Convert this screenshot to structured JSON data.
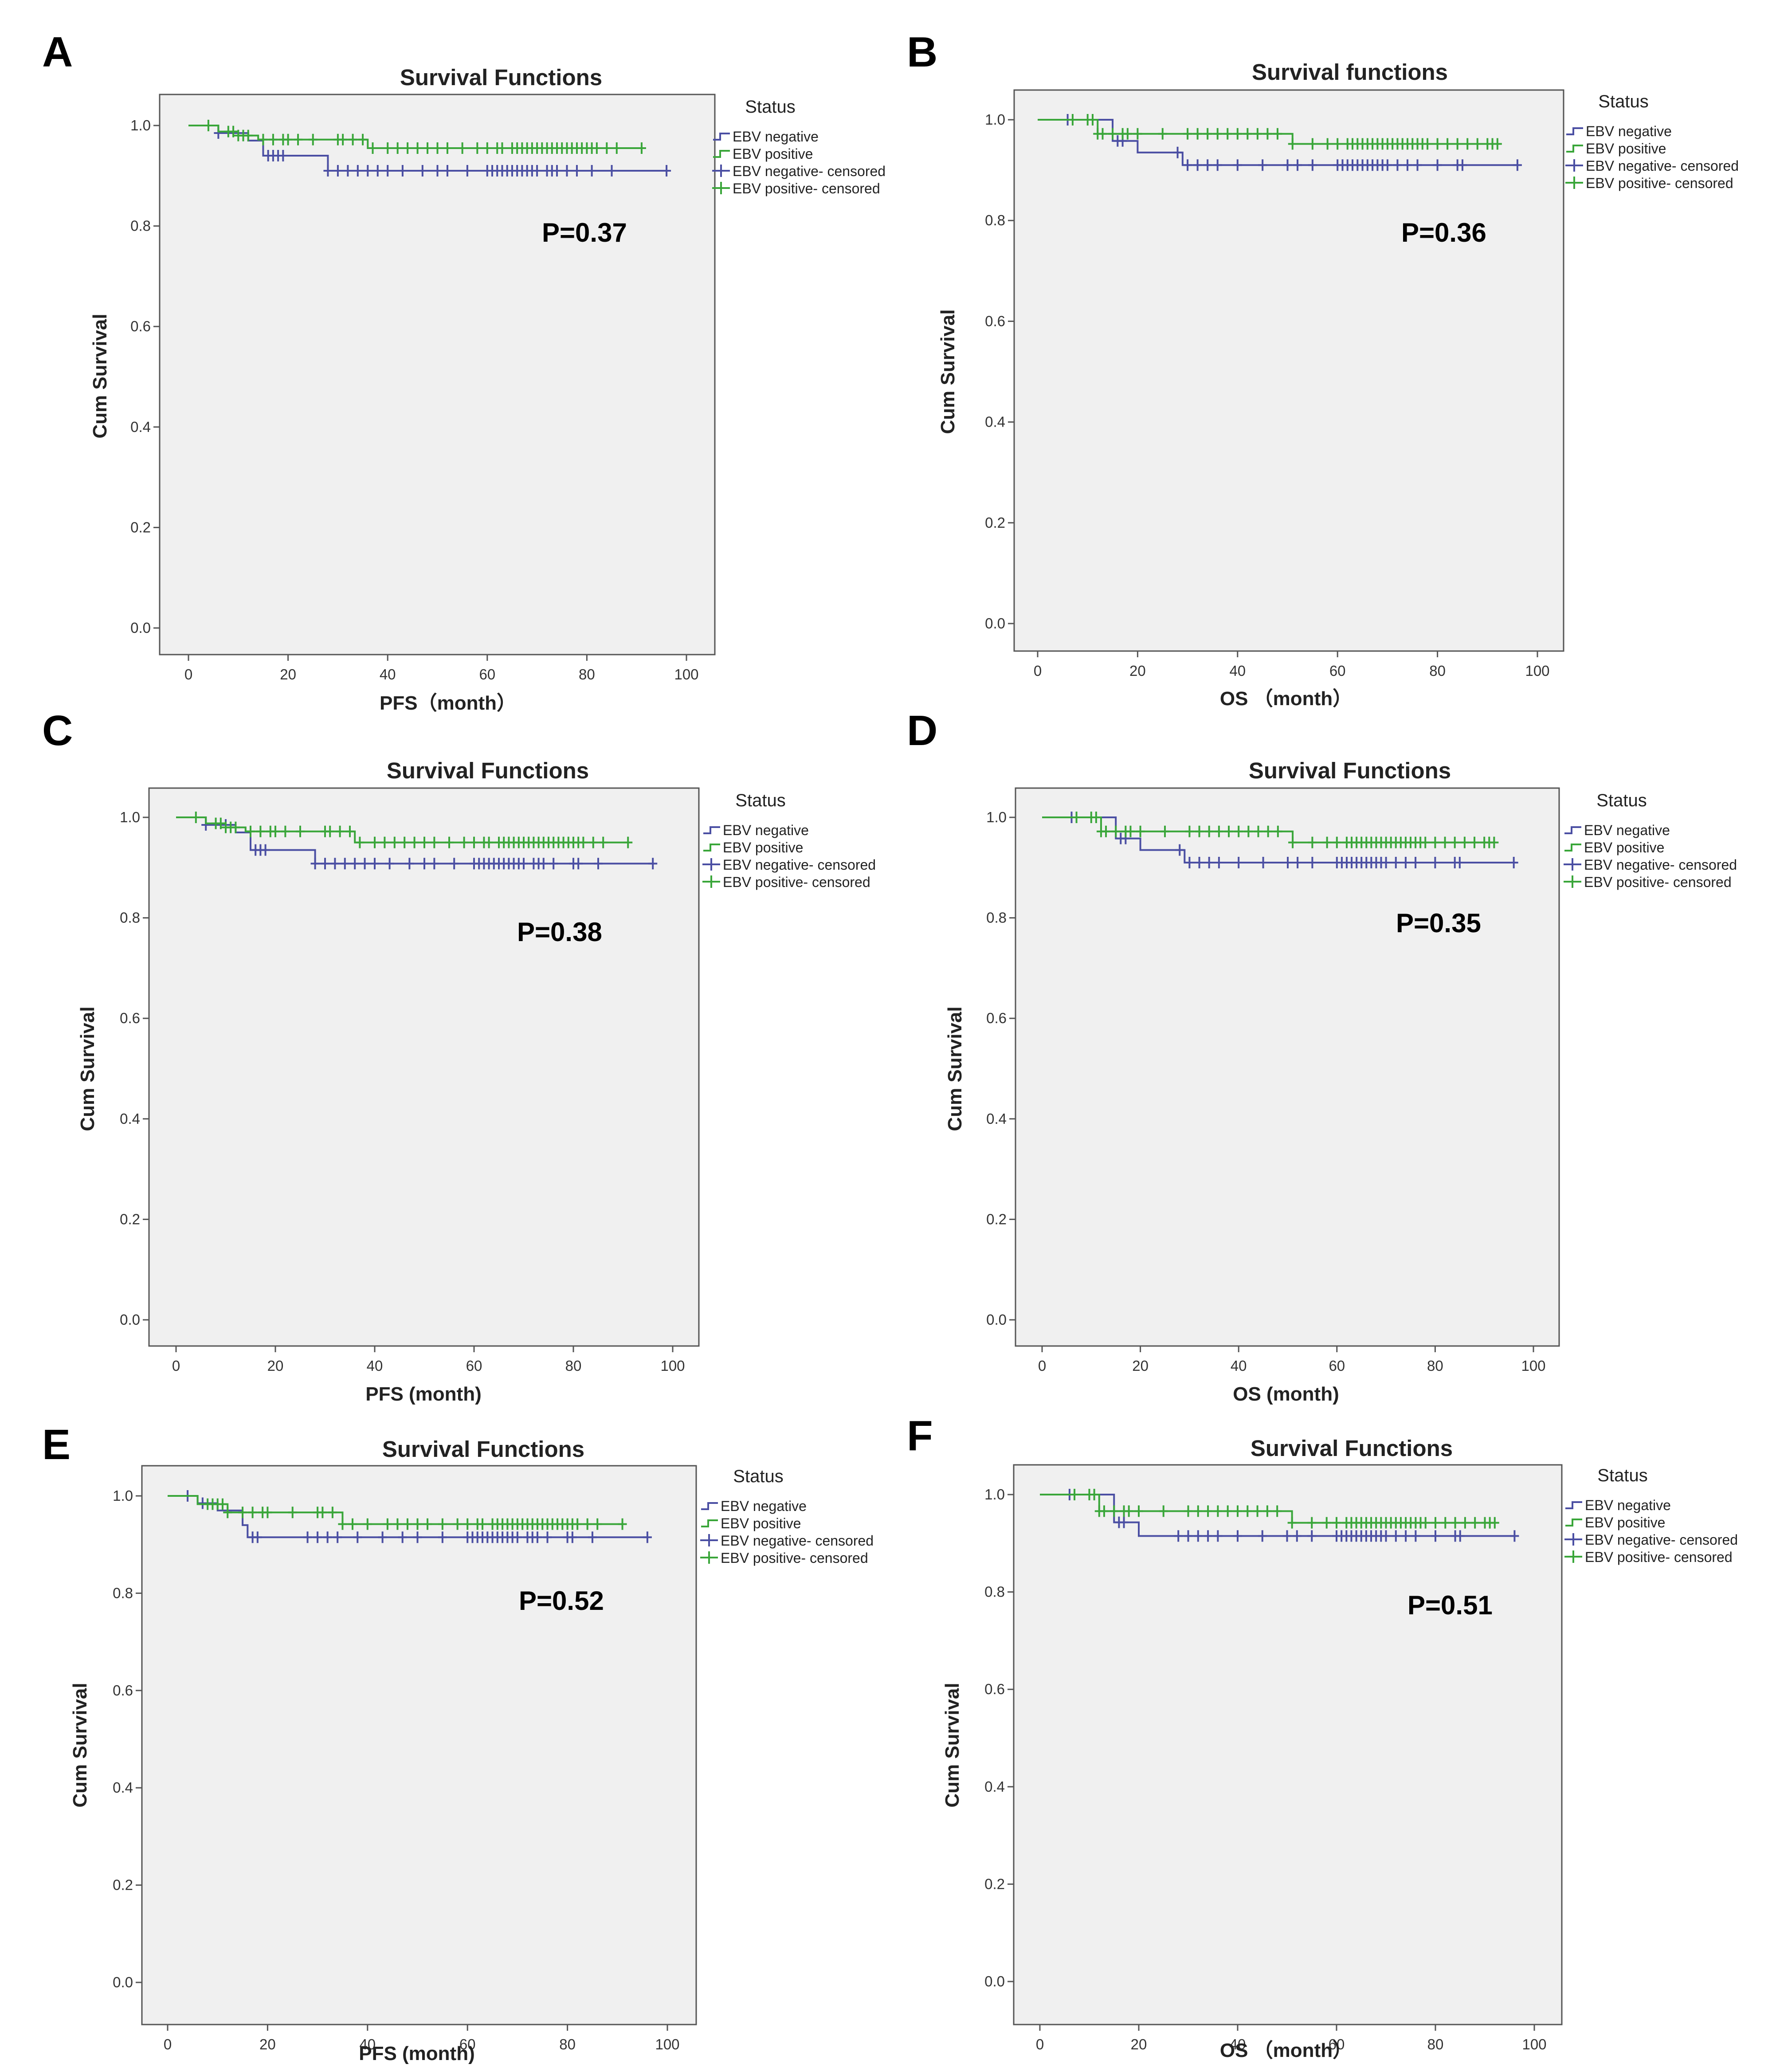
{
  "chart_data": [
    {
      "panel": "A",
      "type": "line",
      "step": true,
      "title": "Survival Functions",
      "xlabel": "PFS（month）",
      "ylabel": "Cum Survival",
      "xlim": [
        0,
        100
      ],
      "ylim": [
        0,
        1.0
      ],
      "xticks": [
        "0",
        "20",
        "40",
        "60",
        "80",
        "100"
      ],
      "yticks": [
        "0.0",
        "0.2",
        "0.4",
        "0.6",
        "0.8",
        "1.0"
      ],
      "legend_title": "Status",
      "legend": [
        "EBV negative",
        "EBV positive",
        "EBV negative- censored",
        "EBV positive- censored"
      ],
      "annotation": "P=0.37",
      "series": [
        {
          "name": "EBV negative",
          "color": "#4b4fa3",
          "steps": [
            [
              0,
              1.0
            ],
            [
              6,
              0.985
            ],
            [
              12,
              0.97
            ],
            [
              15,
              0.94
            ],
            [
              28,
              0.91
            ],
            [
              96,
              0.91
            ]
          ],
          "censored": [
            6,
            16,
            17,
            18,
            19,
            28,
            30,
            32,
            34,
            36,
            38,
            40,
            43,
            47,
            50,
            52,
            56,
            60,
            61,
            62,
            63,
            64,
            65,
            66,
            67,
            68,
            69,
            70,
            72,
            73,
            74,
            76,
            78,
            81,
            85,
            96
          ]
        },
        {
          "name": "EBV positive",
          "color": "#3aa63a",
          "steps": [
            [
              0,
              1.0
            ],
            [
              6,
              0.988
            ],
            [
              10,
              0.98
            ],
            [
              14,
              0.972
            ],
            [
              36,
              0.955
            ],
            [
              91,
              0.955
            ]
          ],
          "censored": [
            4,
            8,
            9,
            10,
            11,
            12,
            15,
            17,
            19,
            20,
            22,
            25,
            30,
            31,
            33,
            35,
            37,
            40,
            42,
            44,
            46,
            48,
            50,
            52,
            55,
            58,
            60,
            62,
            63,
            65,
            66,
            67,
            68,
            69,
            70,
            71,
            72,
            73,
            74,
            75,
            76,
            77,
            78,
            79,
            80,
            81,
            82,
            84,
            86,
            91
          ]
        }
      ]
    },
    {
      "panel": "B",
      "type": "line",
      "step": true,
      "title": "Survival functions",
      "xlabel": "OS （month）",
      "ylabel": "Cum Survival",
      "xlim": [
        0,
        100
      ],
      "ylim": [
        0,
        1.0
      ],
      "xticks": [
        "0",
        "20",
        "40",
        "60",
        "80",
        "100"
      ],
      "yticks": [
        "0.0",
        "0.2",
        "0.4",
        "0.6",
        "0.8",
        "1.0"
      ],
      "legend_title": "Status",
      "legend": [
        "EBV negative",
        "EBV positive",
        "EBV negative- censored",
        "EBV positive- censored"
      ],
      "annotation": "P=0.36",
      "series": [
        {
          "name": "EBV negative",
          "color": "#4b4fa3",
          "steps": [
            [
              0,
              1.0
            ],
            [
              15,
              0.958
            ],
            [
              20,
              0.935
            ],
            [
              29,
              0.91
            ],
            [
              96,
              0.91
            ]
          ],
          "censored": [
            6,
            16,
            17,
            28,
            30,
            32,
            34,
            36,
            40,
            45,
            50,
            52,
            55,
            60,
            61,
            62,
            63,
            64,
            65,
            66,
            67,
            68,
            69,
            70,
            72,
            74,
            76,
            80,
            84,
            85,
            96
          ]
        },
        {
          "name": "EBV positive",
          "color": "#3aa63a",
          "steps": [
            [
              0,
              1.0
            ],
            [
              12,
              0.972
            ],
            [
              51,
              0.952
            ],
            [
              92,
              0.952
            ]
          ],
          "censored": [
            7,
            10,
            11,
            12,
            13,
            15,
            17,
            18,
            20,
            25,
            30,
            32,
            34,
            36,
            38,
            40,
            42,
            44,
            46,
            48,
            51,
            55,
            58,
            60,
            62,
            63,
            64,
            65,
            66,
            67,
            68,
            69,
            70,
            71,
            72,
            73,
            74,
            75,
            76,
            77,
            78,
            80,
            82,
            84,
            86,
            88,
            90,
            91,
            92
          ]
        }
      ]
    },
    {
      "panel": "C",
      "type": "line",
      "step": true,
      "title": "Survival Functions",
      "xlabel": "PFS (month)",
      "ylabel": "Cum Survival",
      "xlim": [
        0,
        100
      ],
      "ylim": [
        0,
        1.0
      ],
      "xticks": [
        "0",
        "20",
        "40",
        "60",
        "80",
        "100"
      ],
      "yticks": [
        "0.0",
        "0.2",
        "0.4",
        "0.6",
        "0.8",
        "1.0"
      ],
      "legend_title": "Status",
      "legend": [
        "EBV negative",
        "EBV positive",
        "EBV negative- censored",
        "EBV positive- censored"
      ],
      "annotation": "P=0.38",
      "series": [
        {
          "name": "EBV negative",
          "color": "#4b4fa3",
          "steps": [
            [
              0,
              1.0
            ],
            [
              6,
              0.985
            ],
            [
              12,
              0.97
            ],
            [
              15,
              0.935
            ],
            [
              28,
              0.908
            ],
            [
              96,
              0.908
            ]
          ],
          "censored": [
            6,
            10,
            16,
            17,
            18,
            28,
            30,
            32,
            34,
            36,
            38,
            40,
            43,
            47,
            50,
            52,
            56,
            60,
            61,
            62,
            63,
            64,
            65,
            66,
            67,
            68,
            69,
            70,
            72,
            73,
            74,
            76,
            80,
            81,
            85,
            96
          ]
        },
        {
          "name": "EBV positive",
          "color": "#3aa63a",
          "steps": [
            [
              0,
              1.0
            ],
            [
              6,
              0.988
            ],
            [
              10,
              0.98
            ],
            [
              14,
              0.972
            ],
            [
              36,
              0.95
            ],
            [
              91,
              0.95
            ]
          ],
          "censored": [
            4,
            8,
            9,
            10,
            11,
            12,
            15,
            17,
            19,
            20,
            22,
            25,
            30,
            31,
            33,
            35,
            37,
            40,
            42,
            44,
            46,
            48,
            50,
            52,
            55,
            58,
            60,
            62,
            63,
            65,
            66,
            67,
            68,
            69,
            70,
            71,
            72,
            73,
            74,
            75,
            76,
            77,
            78,
            79,
            80,
            81,
            82,
            84,
            86,
            91
          ]
        }
      ]
    },
    {
      "panel": "D",
      "type": "line",
      "step": true,
      "title": "Survival Functions",
      "xlabel": "OS (month)",
      "ylabel": "Cum Survival",
      "xlim": [
        0,
        100
      ],
      "ylim": [
        0,
        1.0
      ],
      "xticks": [
        "0",
        "20",
        "40",
        "60",
        "80",
        "100"
      ],
      "yticks": [
        "0.0",
        "0.2",
        "0.4",
        "0.6",
        "0.8",
        "1.0"
      ],
      "legend_title": "Status",
      "legend": [
        "EBV negative",
        "EBV positive",
        "EBV negative- censored",
        "EBV positive- censored"
      ],
      "annotation": "P=0.35",
      "series": [
        {
          "name": "EBV negative",
          "color": "#4b4fa3",
          "steps": [
            [
              0,
              1.0
            ],
            [
              15,
              0.958
            ],
            [
              20,
              0.935
            ],
            [
              29,
              0.91
            ],
            [
              96,
              0.91
            ]
          ],
          "censored": [
            6,
            16,
            17,
            28,
            30,
            32,
            34,
            36,
            40,
            45,
            50,
            52,
            55,
            60,
            61,
            62,
            63,
            64,
            65,
            66,
            67,
            68,
            69,
            70,
            72,
            74,
            76,
            80,
            84,
            85,
            96
          ]
        },
        {
          "name": "EBV positive",
          "color": "#3aa63a",
          "steps": [
            [
              0,
              1.0
            ],
            [
              12,
              0.972
            ],
            [
              51,
              0.95
            ],
            [
              92,
              0.95
            ]
          ],
          "censored": [
            7,
            10,
            11,
            12,
            13,
            15,
            17,
            18,
            20,
            25,
            30,
            32,
            34,
            36,
            38,
            40,
            42,
            44,
            46,
            48,
            51,
            55,
            58,
            60,
            62,
            63,
            64,
            65,
            66,
            67,
            68,
            69,
            70,
            71,
            72,
            73,
            74,
            75,
            76,
            77,
            78,
            80,
            82,
            84,
            86,
            88,
            90,
            91,
            92
          ]
        }
      ]
    },
    {
      "panel": "E",
      "type": "line",
      "step": true,
      "title": "Survival Functions",
      "xlabel": "PFS (month)",
      "ylabel": "Cum Survival",
      "xlim": [
        0,
        100
      ],
      "ylim": [
        0,
        1.0
      ],
      "xticks": [
        "0",
        "20",
        "40",
        "60",
        "80",
        "100"
      ],
      "yticks": [
        "0.0",
        "0.2",
        "0.4",
        "0.6",
        "0.8",
        "1.0"
      ],
      "legend_title": "Status",
      "legend": [
        "EBV negative",
        "EBV positive",
        "EBV negative- censored",
        "EBV positive- censored"
      ],
      "annotation": "P=0.52",
      "series": [
        {
          "name": "EBV negative",
          "color": "#4b4fa3",
          "steps": [
            [
              0,
              1.0
            ],
            [
              6,
              0.985
            ],
            [
              10,
              0.97
            ],
            [
              15,
              0.94
            ],
            [
              16,
              0.915
            ],
            [
              96,
              0.915
            ]
          ],
          "censored": [
            4,
            7,
            17,
            18,
            28,
            30,
            32,
            34,
            38,
            43,
            47,
            50,
            55,
            60,
            61,
            62,
            63,
            64,
            65,
            66,
            67,
            68,
            69,
            70,
            72,
            73,
            74,
            76,
            80,
            81,
            85,
            96
          ]
        },
        {
          "name": "EBV positive",
          "color": "#3aa63a",
          "steps": [
            [
              0,
              1.0
            ],
            [
              6,
              0.983
            ],
            [
              12,
              0.966
            ],
            [
              35,
              0.942
            ],
            [
              91,
              0.942
            ]
          ],
          "censored": [
            8,
            9,
            10,
            11,
            12,
            15,
            17,
            19,
            20,
            25,
            30,
            31,
            33,
            35,
            37,
            40,
            44,
            46,
            48,
            50,
            52,
            55,
            58,
            60,
            62,
            63,
            65,
            66,
            67,
            68,
            69,
            70,
            71,
            72,
            73,
            74,
            75,
            76,
            77,
            78,
            79,
            80,
            81,
            82,
            84,
            86,
            91
          ]
        }
      ]
    },
    {
      "panel": "F",
      "type": "line",
      "step": true,
      "title": "Survival Functions",
      "xlabel": "OS （month）",
      "ylabel": "Cum Survival",
      "xlim": [
        0,
        100
      ],
      "ylim": [
        0,
        1.0
      ],
      "xticks": [
        "0",
        "20",
        "40",
        "60",
        "80",
        "100"
      ],
      "yticks": [
        "0.0",
        "0.2",
        "0.4",
        "0.6",
        "0.8",
        "1.0"
      ],
      "legend_title": "Status",
      "legend": [
        "EBV negative",
        "EBV positive",
        "EBV negative- censored",
        "EBV positive- censored"
      ],
      "annotation": "P=0.51",
      "series": [
        {
          "name": "EBV negative",
          "color": "#4b4fa3",
          "steps": [
            [
              0,
              1.0
            ],
            [
              15,
              0.943
            ],
            [
              20,
              0.915
            ],
            [
              96,
              0.915
            ]
          ],
          "censored": [
            6,
            16,
            17,
            28,
            30,
            32,
            34,
            36,
            40,
            45,
            50,
            52,
            55,
            60,
            61,
            62,
            63,
            64,
            65,
            66,
            67,
            68,
            69,
            70,
            72,
            74,
            76,
            80,
            84,
            85,
            96
          ]
        },
        {
          "name": "EBV positive",
          "color": "#3aa63a",
          "steps": [
            [
              0,
              1.0
            ],
            [
              12,
              0.966
            ],
            [
              51,
              0.942
            ],
            [
              92,
              0.942
            ]
          ],
          "censored": [
            7,
            10,
            11,
            12,
            13,
            15,
            17,
            18,
            20,
            25,
            30,
            32,
            34,
            36,
            38,
            40,
            42,
            44,
            46,
            48,
            51,
            55,
            58,
            60,
            62,
            63,
            64,
            65,
            66,
            67,
            68,
            69,
            70,
            71,
            72,
            73,
            74,
            75,
            76,
            77,
            78,
            80,
            82,
            84,
            86,
            88,
            90,
            91,
            92
          ]
        }
      ]
    }
  ]
}
